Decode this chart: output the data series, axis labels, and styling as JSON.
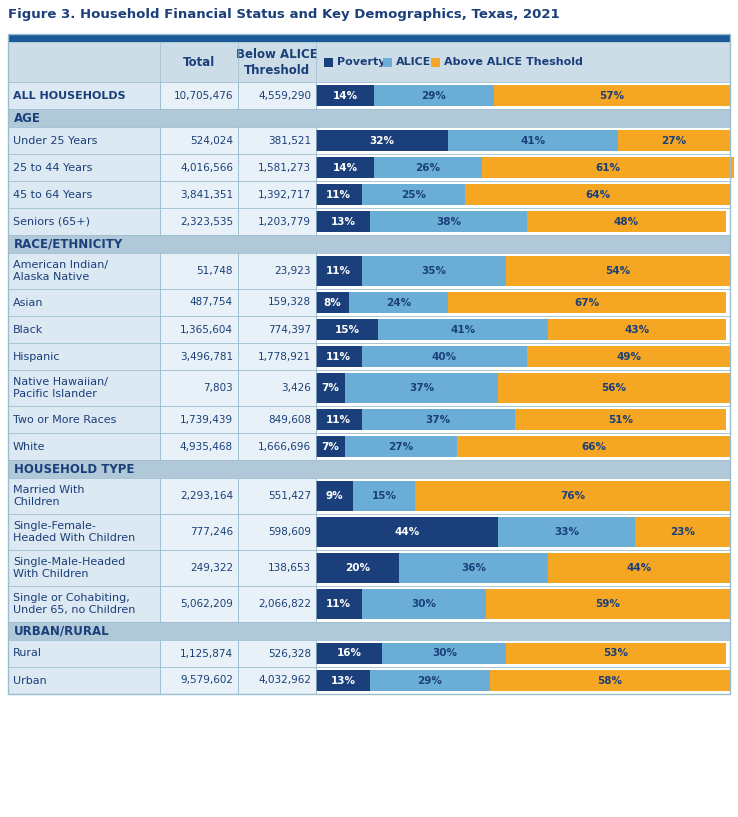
{
  "title": "Figure 3. Household Financial Status and Key Demographics, Texas, 2021",
  "legend_labels": [
    "Poverty",
    "ALICE",
    "Above ALICE Theshold"
  ],
  "colors": {
    "poverty": "#1a3f7a",
    "alice": "#6aaed6",
    "above": "#f5a623",
    "dark_header_bg": "#1a5a96",
    "col_header_bg": "#cddde8",
    "section_bg": "#b0c8d8",
    "data_row_bg": "#dce8f2",
    "num_col_bg": "#e8f1f7",
    "white": "#ffffff",
    "text_dark": "#1a3f7a",
    "text_orange": "#e87b10",
    "border": "#9bbdd0"
  },
  "rows": [
    {
      "type": "data",
      "label": "ALL HOUSEHOLDS",
      "total": "10,705,476",
      "below": "4,559,290",
      "poverty": 14,
      "alice": 29,
      "above": 57,
      "bold": true,
      "tall": false
    },
    {
      "type": "section",
      "label": "AGE"
    },
    {
      "type": "data",
      "label": "Under 25 Years",
      "total": "524,024",
      "below": "381,521",
      "poverty": 32,
      "alice": 41,
      "above": 27,
      "bold": false,
      "tall": false
    },
    {
      "type": "data",
      "label": "25 to 44 Years",
      "total": "4,016,566",
      "below": "1,581,273",
      "poverty": 14,
      "alice": 26,
      "above": 61,
      "bold": false,
      "tall": false
    },
    {
      "type": "data",
      "label": "45 to 64 Years",
      "total": "3,841,351",
      "below": "1,392,717",
      "poverty": 11,
      "alice": 25,
      "above": 64,
      "bold": false,
      "tall": false
    },
    {
      "type": "data",
      "label": "Seniors (65+)",
      "total": "2,323,535",
      "below": "1,203,779",
      "poverty": 13,
      "alice": 38,
      "above": 48,
      "bold": false,
      "tall": false
    },
    {
      "type": "section",
      "label": "RACE/ETHNICITY"
    },
    {
      "type": "data",
      "label": "American Indian/\nAlaska Native",
      "total": "51,748",
      "below": "23,923",
      "poverty": 11,
      "alice": 35,
      "above": 54,
      "bold": false,
      "tall": true
    },
    {
      "type": "data",
      "label": "Asian",
      "total": "487,754",
      "below": "159,328",
      "poverty": 8,
      "alice": 24,
      "above": 67,
      "bold": false,
      "tall": false
    },
    {
      "type": "data",
      "label": "Black",
      "total": "1,365,604",
      "below": "774,397",
      "poverty": 15,
      "alice": 41,
      "above": 43,
      "bold": false,
      "tall": false
    },
    {
      "type": "data",
      "label": "Hispanic",
      "total": "3,496,781",
      "below": "1,778,921",
      "poverty": 11,
      "alice": 40,
      "above": 49,
      "bold": false,
      "tall": false
    },
    {
      "type": "data",
      "label": "Native Hawaiian/\nPacific Islander",
      "total": "7,803",
      "below": "3,426",
      "poverty": 7,
      "alice": 37,
      "above": 56,
      "bold": false,
      "tall": true
    },
    {
      "type": "data",
      "label": "Two or More Races",
      "total": "1,739,439",
      "below": "849,608",
      "poverty": 11,
      "alice": 37,
      "above": 51,
      "bold": false,
      "tall": false
    },
    {
      "type": "data",
      "label": "White",
      "total": "4,935,468",
      "below": "1,666,696",
      "poverty": 7,
      "alice": 27,
      "above": 66,
      "bold": false,
      "tall": false
    },
    {
      "type": "section",
      "label": "HOUSEHOLD TYPE"
    },
    {
      "type": "data",
      "label": "Married With\nChildren",
      "total": "2,293,164",
      "below": "551,427",
      "poverty": 9,
      "alice": 15,
      "above": 76,
      "bold": false,
      "tall": true
    },
    {
      "type": "data",
      "label": "Single-Female-\nHeaded With Children",
      "total": "777,246",
      "below": "598,609",
      "poverty": 44,
      "alice": 33,
      "above": 23,
      "bold": false,
      "tall": true
    },
    {
      "type": "data",
      "label": "Single-Male-Headed\nWith Children",
      "total": "249,322",
      "below": "138,653",
      "poverty": 20,
      "alice": 36,
      "above": 44,
      "bold": false,
      "tall": true
    },
    {
      "type": "data",
      "label": "Single or Cohabiting,\nUnder 65, no Children",
      "total": "5,062,209",
      "below": "2,066,822",
      "poverty": 11,
      "alice": 30,
      "above": 59,
      "bold": false,
      "tall": true
    },
    {
      "type": "section",
      "label": "URBAN/RURAL"
    },
    {
      "type": "data",
      "label": "Rural",
      "total": "1,125,874",
      "below": "526,328",
      "poverty": 16,
      "alice": 30,
      "above": 53,
      "bold": false,
      "tall": false
    },
    {
      "type": "data",
      "label": "Urban",
      "total": "9,579,602",
      "below": "4,032,962",
      "poverty": 13,
      "alice": 29,
      "above": 58,
      "bold": false,
      "tall": false
    }
  ]
}
